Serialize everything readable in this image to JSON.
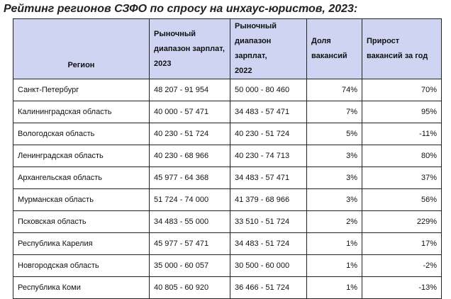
{
  "title": "Рейтинг регионов СЗФО по спросу на инхаус-юристов, 2023:",
  "table": {
    "headers": {
      "region": "Регион",
      "salary_2023": [
        "Рыночный",
        "диапазон зарплат,",
        "2023"
      ],
      "salary_2022": [
        "Рыночный",
        "диапазон зарплат,",
        "2022"
      ],
      "share": [
        "Доля",
        "вакансий"
      ],
      "growth": [
        "Прирост",
        "вакансий за год"
      ]
    },
    "rows": [
      {
        "region": "Санкт-Петербург",
        "salary_2023": "48 207 - 91 954",
        "salary_2022": "50 000 - 80 460",
        "share": "74%",
        "growth": "70%"
      },
      {
        "region": "Калининградская область",
        "salary_2023": "40 000 - 57 471",
        "salary_2022": "34 483 - 57 471",
        "share": "7%",
        "growth": "95%"
      },
      {
        "region": "Вологодская область",
        "salary_2023": "40 230 - 51 724",
        "salary_2022": "40 230 - 51 724",
        "share": "5%",
        "growth": "-11%"
      },
      {
        "region": "Ленинградская область",
        "salary_2023": "40 230 - 68 966",
        "salary_2022": "40 230 - 74 713",
        "share": "3%",
        "growth": "80%"
      },
      {
        "region": "Архангельская область",
        "salary_2023": "45 977 - 64 368",
        "salary_2022": "34 483 - 57 471",
        "share": "3%",
        "growth": "37%"
      },
      {
        "region": "Мурманская область",
        "salary_2023": "51 724 - 74 000",
        "salary_2022": "41 379 - 68 966",
        "share": "3%",
        "growth": "56%"
      },
      {
        "region": "Псковская область",
        "salary_2023": "34 483 - 55 000",
        "salary_2022": "33 510 - 51 724",
        "share": "2%",
        "growth": "229%"
      },
      {
        "region": "Республика Карелия",
        "salary_2023": "45 977 - 57 471",
        "salary_2022": "34 483 - 51 724",
        "share": "1%",
        "growth": "17%"
      },
      {
        "region": "Новгородская область",
        "salary_2023": "35 000 - 60 057",
        "salary_2022": "30 500 - 60 000",
        "share": "1%",
        "growth": "-2%"
      },
      {
        "region": "Республика Коми",
        "salary_2023": "40 805 - 60 920",
        "salary_2022": "36 466 - 51 724",
        "share": "1%",
        "growth": "-13%"
      }
    ]
  }
}
